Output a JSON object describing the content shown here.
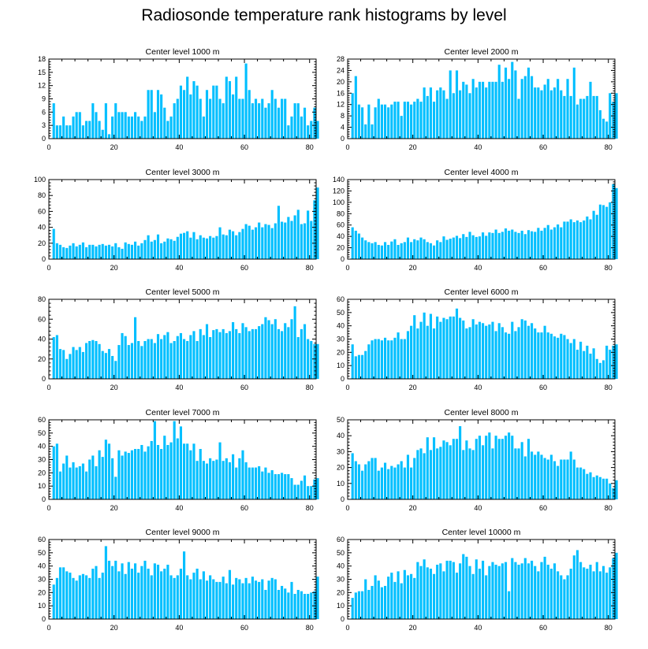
{
  "title": "Radiosonde temperature rank histograms by level",
  "colors": {
    "bar": "#00bfff",
    "axis": "#000000",
    "background": "#ffffff"
  },
  "chart_data": [
    {
      "type": "bar",
      "title": "Center level 1000 m",
      "xlabel": "",
      "ylabel": "",
      "xlim": [
        0,
        82
      ],
      "ylim": [
        0,
        18
      ],
      "xticks": [
        0,
        20,
        40,
        60,
        80
      ],
      "yticks": [
        0,
        3,
        6,
        9,
        12,
        15,
        18
      ],
      "values": [
        0,
        8,
        3,
        3,
        5,
        3,
        3,
        5,
        6,
        6,
        3,
        4,
        4,
        8,
        6,
        4,
        2,
        8,
        1,
        5,
        8,
        6,
        6,
        6,
        5,
        5,
        6,
        5,
        4,
        5,
        11,
        11,
        6,
        11,
        10,
        7,
        4,
        5,
        8,
        9,
        12,
        11,
        14,
        10,
        13,
        12,
        9,
        5,
        11,
        9,
        12,
        12,
        9,
        8,
        14,
        13,
        10,
        14,
        9,
        9,
        17,
        11,
        8,
        9,
        8,
        9,
        7,
        8,
        11,
        9,
        7,
        9,
        9,
        3,
        5,
        8,
        8,
        5,
        7,
        3,
        4,
        7,
        4
      ]
    },
    {
      "type": "bar",
      "title": "Center level 2000 m",
      "xlabel": "",
      "ylabel": "",
      "xlim": [
        0,
        82
      ],
      "ylim": [
        0,
        28
      ],
      "xticks": [
        0,
        20,
        40,
        60,
        80
      ],
      "yticks": [
        0,
        4,
        8,
        12,
        16,
        20,
        24,
        28
      ],
      "values": [
        0,
        16,
        22,
        12,
        11,
        5,
        12,
        5,
        11,
        14,
        12,
        12,
        11,
        12,
        13,
        13,
        8,
        13,
        13,
        12,
        13,
        14,
        13,
        18,
        15,
        18,
        13,
        17,
        18,
        17,
        14,
        24,
        16,
        24,
        17,
        20,
        19,
        16,
        21,
        18,
        20,
        20,
        18,
        20,
        20,
        20,
        26,
        20,
        25,
        21,
        27,
        24,
        14,
        21,
        22,
        25,
        22,
        18,
        18,
        17,
        19,
        21,
        17,
        18,
        21,
        17,
        15,
        21,
        15,
        25,
        12,
        14,
        14,
        15,
        20,
        15,
        15,
        10,
        7,
        6,
        16,
        13,
        16
      ]
    },
    {
      "type": "bar",
      "title": "Center level 3000 m",
      "xlabel": "",
      "ylabel": "",
      "xlim": [
        0,
        82
      ],
      "ylim": [
        0,
        100
      ],
      "xticks": [
        0,
        20,
        40,
        60,
        80
      ],
      "yticks": [
        0,
        20,
        40,
        60,
        80,
        100
      ],
      "values": [
        0,
        38,
        20,
        18,
        15,
        14,
        17,
        20,
        16,
        18,
        21,
        15,
        18,
        18,
        16,
        18,
        19,
        17,
        18,
        16,
        20,
        15,
        13,
        21,
        19,
        18,
        22,
        17,
        20,
        24,
        30,
        22,
        24,
        31,
        20,
        22,
        26,
        25,
        23,
        28,
        32,
        33,
        35,
        27,
        34,
        25,
        30,
        27,
        26,
        29,
        27,
        29,
        40,
        31,
        30,
        37,
        35,
        30,
        34,
        38,
        44,
        42,
        37,
        40,
        46,
        40,
        44,
        43,
        39,
        45,
        67,
        47,
        46,
        53,
        48,
        55,
        62,
        44,
        45,
        61,
        48,
        74,
        90
      ]
    },
    {
      "type": "bar",
      "title": "Center level 4000 m",
      "xlabel": "",
      "ylabel": "",
      "xlim": [
        0,
        82
      ],
      "ylim": [
        0,
        140
      ],
      "xticks": [
        0,
        20,
        40,
        60,
        80
      ],
      "yticks": [
        0,
        20,
        40,
        60,
        80,
        100,
        120,
        140
      ],
      "values": [
        0,
        56,
        50,
        45,
        38,
        33,
        30,
        28,
        30,
        25,
        24,
        30,
        25,
        31,
        35,
        25,
        28,
        30,
        38,
        30,
        35,
        33,
        38,
        35,
        30,
        28,
        24,
        33,
        30,
        40,
        34,
        36,
        38,
        41,
        37,
        44,
        39,
        48,
        42,
        39,
        40,
        47,
        41,
        47,
        46,
        52,
        46,
        48,
        54,
        50,
        52,
        48,
        46,
        50,
        44,
        51,
        49,
        48,
        55,
        50,
        55,
        60,
        52,
        56,
        61,
        56,
        66,
        66,
        70,
        65,
        68,
        65,
        68,
        75,
        70,
        85,
        78,
        96,
        95,
        92,
        100,
        132,
        125
      ]
    },
    {
      "type": "bar",
      "title": "Center level 5000 m",
      "xlabel": "",
      "ylabel": "",
      "xlim": [
        0,
        82
      ],
      "ylim": [
        0,
        80
      ],
      "xticks": [
        0,
        20,
        40,
        60,
        80
      ],
      "yticks": [
        0,
        20,
        40,
        60,
        80
      ],
      "values": [
        0,
        42,
        44,
        30,
        29,
        20,
        25,
        32,
        29,
        32,
        27,
        36,
        38,
        39,
        38,
        35,
        28,
        26,
        30,
        23,
        18,
        34,
        46,
        43,
        34,
        36,
        62,
        38,
        33,
        38,
        40,
        40,
        36,
        45,
        40,
        44,
        47,
        36,
        38,
        43,
        46,
        40,
        38,
        44,
        48,
        38,
        50,
        44,
        55,
        42,
        49,
        50,
        47,
        50,
        46,
        48,
        57,
        50,
        46,
        56,
        52,
        48,
        50,
        50,
        53,
        55,
        62,
        59,
        55,
        60,
        50,
        48,
        56,
        52,
        60,
        73,
        42,
        50,
        55,
        40,
        38,
        35,
        35
      ]
    },
    {
      "type": "bar",
      "title": "Center level 6000 m",
      "xlabel": "",
      "ylabel": "",
      "xlim": [
        0,
        82
      ],
      "ylim": [
        0,
        60
      ],
      "xticks": [
        0,
        20,
        40,
        60,
        80
      ],
      "yticks": [
        0,
        10,
        20,
        30,
        40,
        50,
        60
      ],
      "values": [
        0,
        26,
        17,
        18,
        18,
        21,
        26,
        29,
        30,
        30,
        29,
        31,
        29,
        29,
        31,
        35,
        30,
        30,
        36,
        40,
        48,
        38,
        43,
        50,
        40,
        49,
        38,
        47,
        43,
        46,
        45,
        47,
        47,
        53,
        46,
        44,
        38,
        39,
        45,
        41,
        43,
        42,
        40,
        41,
        43,
        36,
        42,
        39,
        35,
        34,
        43,
        36,
        39,
        45,
        44,
        40,
        42,
        38,
        35,
        35,
        40,
        35,
        34,
        32,
        31,
        34,
        33,
        30,
        27,
        30,
        22,
        28,
        21,
        25,
        19,
        23,
        15,
        12,
        14,
        25,
        22,
        25,
        26
      ]
    },
    {
      "type": "bar",
      "title": "Center level 7000 m",
      "xlabel": "",
      "ylabel": "",
      "xlim": [
        0,
        82
      ],
      "ylim": [
        0,
        60
      ],
      "xticks": [
        0,
        20,
        40,
        60,
        80
      ],
      "yticks": [
        0,
        10,
        20,
        30,
        40,
        50,
        60
      ],
      "values": [
        0,
        40,
        42,
        21,
        27,
        33,
        24,
        28,
        24,
        25,
        27,
        21,
        30,
        33,
        25,
        37,
        32,
        45,
        42,
        31,
        17,
        37,
        33,
        36,
        35,
        37,
        38,
        38,
        41,
        36,
        40,
        44,
        59,
        41,
        38,
        48,
        41,
        43,
        59,
        46,
        55,
        42,
        42,
        37,
        42,
        29,
        38,
        29,
        27,
        31,
        29,
        30,
        43,
        29,
        31,
        28,
        34,
        24,
        31,
        37,
        28,
        24,
        24,
        24,
        25,
        21,
        24,
        20,
        22,
        19,
        19,
        20,
        19,
        19,
        16,
        11,
        11,
        14,
        18,
        10,
        10,
        15,
        16
      ]
    },
    {
      "type": "bar",
      "title": "Center level 8000 m",
      "xlabel": "",
      "ylabel": "",
      "xlim": [
        0,
        82
      ],
      "ylim": [
        0,
        50
      ],
      "xticks": [
        0,
        20,
        40,
        60,
        80
      ],
      "yticks": [
        0,
        10,
        20,
        30,
        40,
        50
      ],
      "values": [
        0,
        29,
        24,
        22,
        18,
        22,
        24,
        26,
        26,
        18,
        20,
        23,
        19,
        21,
        20,
        22,
        24,
        20,
        28,
        20,
        26,
        31,
        32,
        29,
        39,
        31,
        39,
        32,
        33,
        37,
        36,
        34,
        38,
        38,
        46,
        31,
        37,
        32,
        31,
        38,
        40,
        34,
        40,
        42,
        32,
        40,
        38,
        38,
        40,
        42,
        40,
        32,
        32,
        36,
        27,
        38,
        30,
        28,
        30,
        28,
        26,
        25,
        28,
        24,
        21,
        25,
        25,
        25,
        30,
        25,
        20,
        20,
        19,
        16,
        17,
        14,
        15,
        14,
        13,
        13,
        10,
        7,
        12
      ]
    },
    {
      "type": "bar",
      "title": "Center level 9000 m",
      "xlabel": "",
      "ylabel": "",
      "xlim": [
        0,
        82
      ],
      "ylim": [
        0,
        60
      ],
      "xticks": [
        0,
        20,
        40,
        60,
        80
      ],
      "yticks": [
        0,
        10,
        20,
        30,
        40,
        50,
        60
      ],
      "values": [
        0,
        26,
        31,
        39,
        39,
        36,
        35,
        31,
        29,
        33,
        34,
        33,
        31,
        38,
        40,
        31,
        35,
        55,
        44,
        40,
        44,
        36,
        42,
        34,
        43,
        38,
        42,
        35,
        40,
        44,
        38,
        33,
        42,
        41,
        36,
        38,
        41,
        33,
        31,
        33,
        38,
        51,
        33,
        30,
        35,
        38,
        30,
        36,
        29,
        33,
        30,
        28,
        28,
        32,
        27,
        37,
        26,
        31,
        30,
        27,
        31,
        27,
        32,
        29,
        28,
        30,
        22,
        29,
        31,
        30,
        22,
        25,
        23,
        20,
        28,
        19,
        22,
        21,
        19,
        19,
        20,
        21,
        32
      ]
    },
    {
      "type": "bar",
      "title": "Center level 10000 m",
      "xlabel": "",
      "ylabel": "",
      "xlim": [
        0,
        82
      ],
      "ylim": [
        0,
        60
      ],
      "xticks": [
        0,
        20,
        40,
        60,
        80
      ],
      "yticks": [
        0,
        10,
        20,
        30,
        40,
        50,
        60
      ],
      "values": [
        0,
        16,
        20,
        21,
        21,
        30,
        22,
        25,
        33,
        29,
        24,
        25,
        32,
        35,
        28,
        36,
        27,
        37,
        33,
        34,
        31,
        43,
        40,
        45,
        39,
        38,
        34,
        41,
        42,
        36,
        44,
        44,
        43,
        35,
        42,
        49,
        47,
        40,
        34,
        45,
        38,
        44,
        33,
        40,
        43,
        41,
        40,
        42,
        43,
        21,
        46,
        43,
        41,
        42,
        46,
        42,
        44,
        40,
        36,
        43,
        47,
        41,
        38,
        42,
        36,
        33,
        30,
        33,
        38,
        48,
        52,
        43,
        39,
        38,
        41,
        36,
        43,
        36,
        40,
        35,
        39,
        46,
        50
      ]
    }
  ]
}
